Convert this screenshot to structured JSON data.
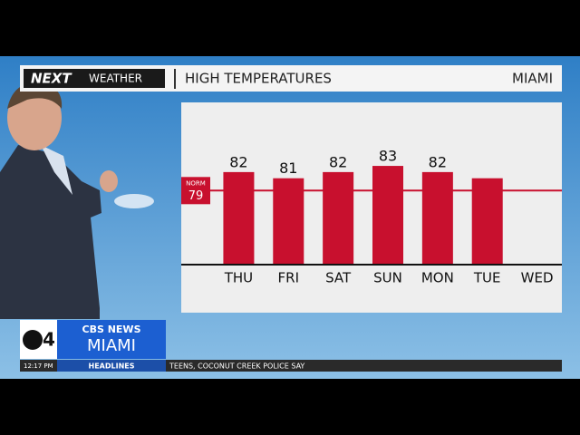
{
  "header": {
    "brand": "NEXT",
    "brand_sub": "WEATHER",
    "title": "HIGH TEMPERATURES",
    "location": "MIAMI"
  },
  "logo": {
    "channel": "4",
    "network": "CBS NEWS",
    "city": "MIAMI"
  },
  "ticker": {
    "time": "12:17 PM",
    "section": "HEADLINES",
    "text": "TEENS, COCONUT CREEK POLICE SAY"
  },
  "chart_data": {
    "type": "bar",
    "categories": [
      "THU",
      "FRI",
      "SAT",
      "SUN",
      "MON",
      "TUE",
      "WED"
    ],
    "values": [
      82,
      81,
      82,
      83,
      82,
      81,
      null
    ],
    "value_labels": [
      "82",
      "81",
      "82",
      "83",
      "82",
      null,
      null
    ],
    "color": "#c8102e",
    "ylim": [
      67,
      93
    ],
    "norm": {
      "label": "NORM",
      "value": 79
    }
  }
}
